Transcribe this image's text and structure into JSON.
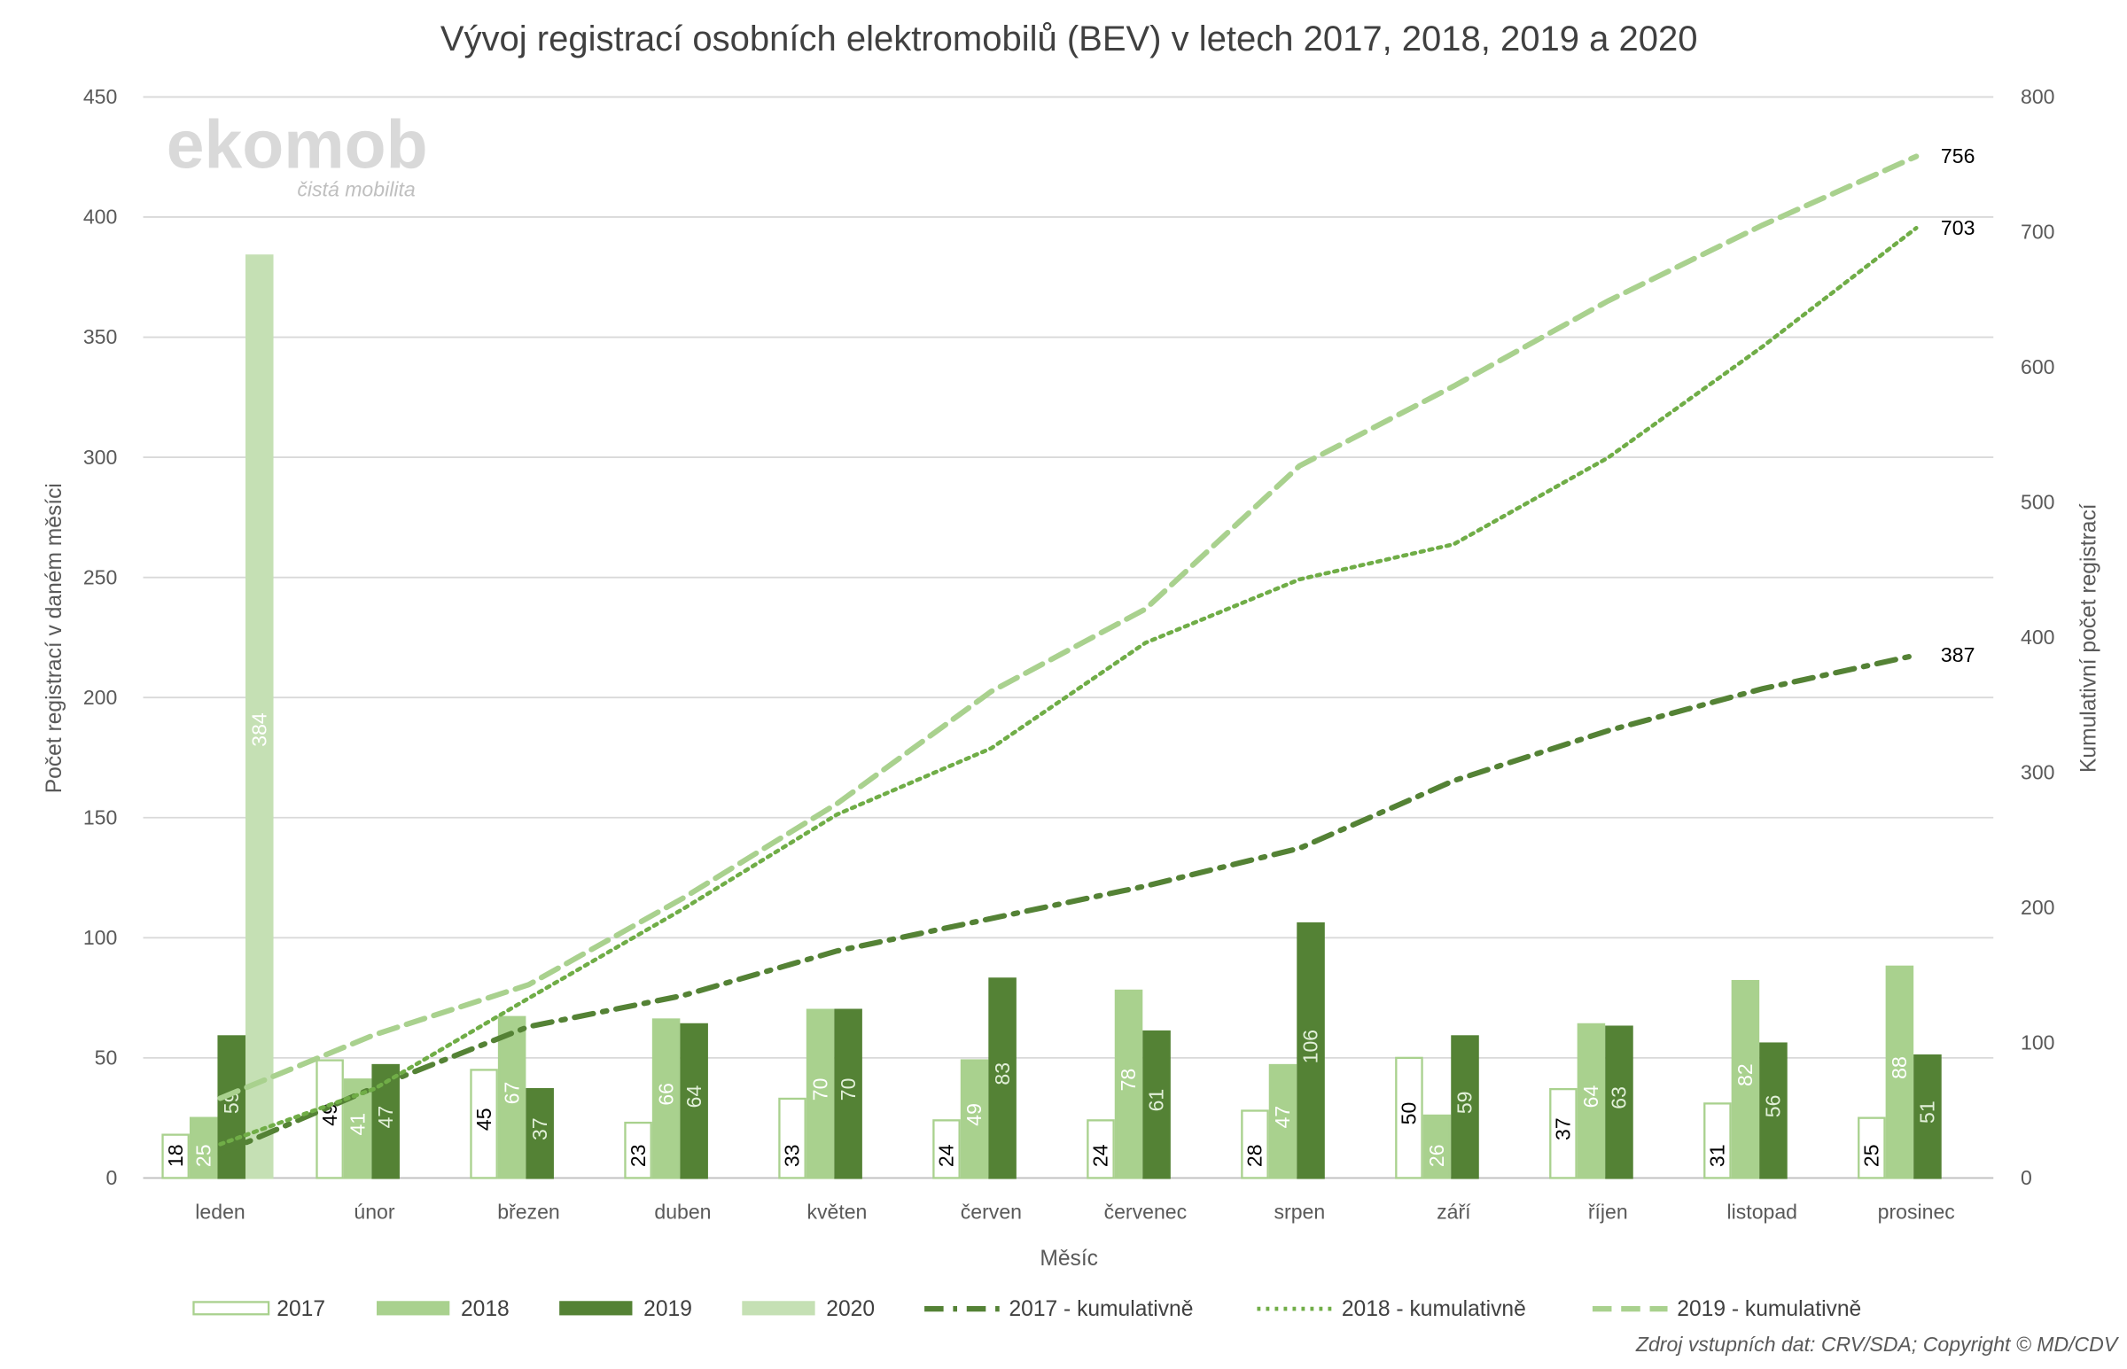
{
  "chart_data": {
    "type": "bar+line",
    "title": "Vývoj registrací osobních elektromobilů (BEV) v letech 2017, 2018, 2019 a 2020",
    "xlabel": "Měsíc",
    "ylabel": "Počet registrací v daném měsíci",
    "ylabel_right": "Kumulativní počet registrací",
    "ylim": [
      0,
      450
    ],
    "yticks": [
      0,
      50,
      100,
      150,
      200,
      250,
      300,
      350,
      400,
      450
    ],
    "ylim_right": [
      0,
      800
    ],
    "yticks_right": [
      0,
      100,
      200,
      300,
      400,
      500,
      600,
      700,
      800
    ],
    "grid": true,
    "legend_position": "bottom",
    "categories": [
      "leden",
      "únor",
      "březen",
      "duben",
      "květen",
      "červen",
      "červenec",
      "srpen",
      "září",
      "říjen",
      "listopad",
      "prosinec"
    ],
    "series": [
      {
        "name": "2017",
        "kind": "bar",
        "axis": "left",
        "color": "#a9d18e",
        "fill": "#ffffff",
        "values": [
          18,
          49,
          45,
          23,
          33,
          24,
          24,
          28,
          50,
          37,
          31,
          25
        ]
      },
      {
        "name": "2018",
        "kind": "bar",
        "axis": "left",
        "color": "#a9d18e",
        "fill": "#a9d18e",
        "values": [
          25,
          41,
          67,
          66,
          70,
          49,
          78,
          47,
          26,
          64,
          82,
          88
        ]
      },
      {
        "name": "2019",
        "kind": "bar",
        "axis": "left",
        "color": "#548235",
        "fill": "#548235",
        "values": [
          59,
          47,
          37,
          64,
          70,
          83,
          61,
          106,
          59,
          63,
          56,
          51
        ]
      },
      {
        "name": "2020",
        "kind": "bar",
        "axis": "left",
        "color": "#c5e0b4",
        "fill": "#c5e0b4",
        "values": [
          384,
          null,
          null,
          null,
          null,
          null,
          null,
          null,
          null,
          null,
          null,
          null
        ]
      },
      {
        "name": "2017 - kumulativně",
        "kind": "line",
        "axis": "right",
        "style": "dash-dot",
        "color": "#548235",
        "values": [
          18,
          67,
          112,
          135,
          168,
          192,
          216,
          244,
          294,
          331,
          362,
          387
        ],
        "end_label": "387"
      },
      {
        "name": "2018 - kumulativně",
        "kind": "line",
        "axis": "right",
        "style": "dotted",
        "color": "#70ad47",
        "values": [
          25,
          66,
          133,
          199,
          269,
          318,
          396,
          443,
          469,
          533,
          615,
          703
        ],
        "end_label": "703"
      },
      {
        "name": "2019 - kumulativně",
        "kind": "line",
        "axis": "right",
        "style": "dashed",
        "color": "#a9d18e",
        "values": [
          59,
          106,
          143,
          207,
          277,
          360,
          421,
          527,
          586,
          649,
          705,
          756
        ],
        "end_label": "756"
      }
    ],
    "source": "Zdroj vstupních dat: CRV/SDA; Copyright © MD/CDV",
    "logo": {
      "text": "ekomob",
      "tagline": "čistá mobilita"
    }
  }
}
